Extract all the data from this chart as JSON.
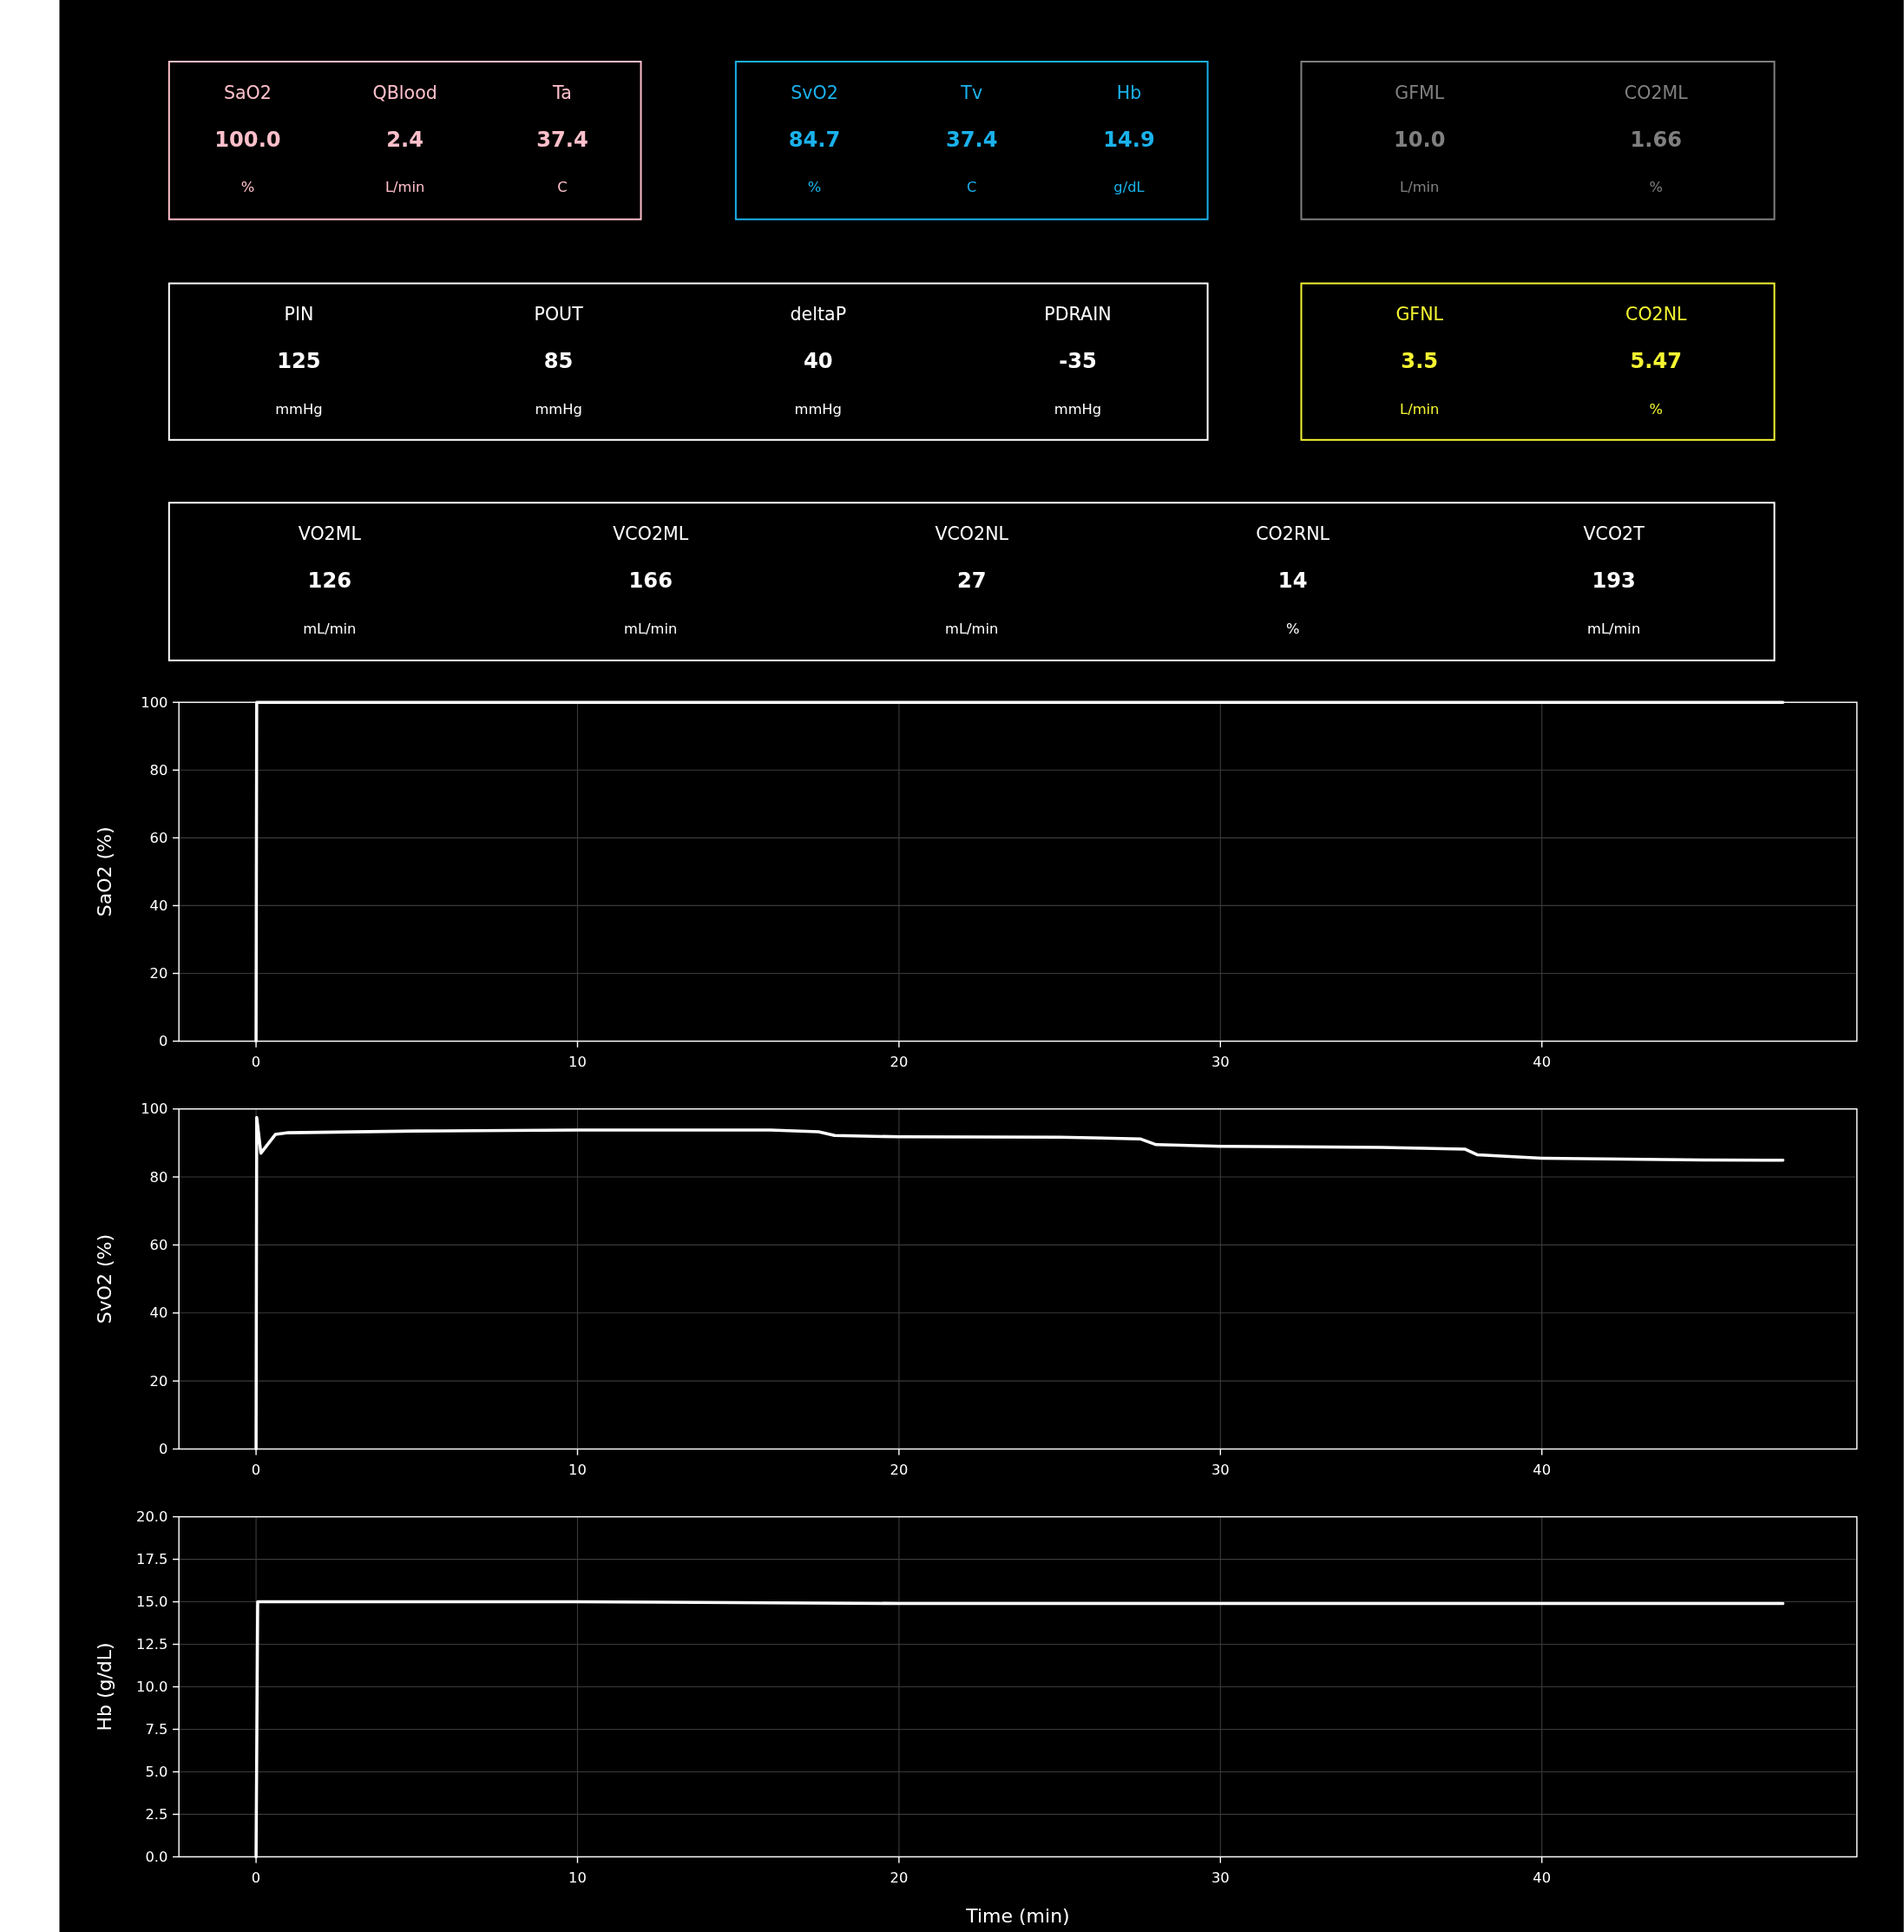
{
  "chart_data": [
    {
      "type": "other",
      "categories": [
        "SaO2",
        "QBlood",
        "Ta"
      ],
      "value_labels": [
        "100.0",
        "2.4",
        "37.4"
      ],
      "annotations": [
        "%",
        "L/min",
        "C"
      ],
      "color": "#ffc0cb"
    },
    {
      "type": "other",
      "categories": [
        "SvO2",
        "Tv",
        "Hb"
      ],
      "value_labels": [
        "84.7",
        "37.4",
        "14.9"
      ],
      "annotations": [
        "%",
        "C",
        "g/dL"
      ],
      "color": "#1ab2ec"
    },
    {
      "type": "other",
      "categories": [
        "GFML",
        "CO2ML"
      ],
      "value_labels": [
        "10.0",
        "1.66"
      ],
      "annotations": [
        "L/min",
        "%"
      ],
      "color": "#808080"
    },
    {
      "type": "other",
      "categories": [
        "PIN",
        "POUT",
        "deltaP",
        "PDRAIN"
      ],
      "value_labels": [
        "125",
        "85",
        "40",
        "-35"
      ],
      "annotations": [
        "mmHg",
        "mmHg",
        "mmHg",
        "mmHg"
      ],
      "color": "#ffffff"
    },
    {
      "type": "other",
      "categories": [
        "GFNL",
        "CO2NL"
      ],
      "value_labels": [
        "3.5",
        "5.47"
      ],
      "annotations": [
        "L/min",
        "%"
      ],
      "color": "#f5f532"
    },
    {
      "type": "other",
      "categories": [
        "VO2ML",
        "VCO2ML",
        "VCO2NL",
        "CO2RNL",
        "VCO2T"
      ],
      "value_labels": [
        "126",
        "166",
        "27",
        "14",
        "193"
      ],
      "annotations": [
        "mL/min",
        "mL/min",
        "mL/min",
        "%",
        "mL/min"
      ],
      "color": "#ffffff"
    },
    {
      "type": "line",
      "ylabel": "SaO2 (%)",
      "x": [
        0,
        0.02,
        10,
        20,
        30,
        40,
        47.5
      ],
      "series": [
        {
          "color": "#ffffff",
          "values": [
            0,
            100,
            100,
            100,
            100,
            100,
            100
          ]
        }
      ],
      "xlim": [
        -2.4,
        49.8
      ],
      "ylim": [
        0,
        100
      ],
      "xticks": [
        0,
        10,
        20,
        30,
        40
      ],
      "yticks": [
        0,
        20,
        40,
        60,
        80,
        100
      ],
      "grid": true
    },
    {
      "type": "line",
      "ylabel": "SvO2 (%)",
      "x": [
        0,
        0.02,
        0.15,
        0.6,
        1,
        5,
        10,
        16,
        17.5,
        18,
        20,
        25,
        27.5,
        28,
        30,
        35,
        37.6,
        38,
        40,
        45,
        47.5
      ],
      "series": [
        {
          "color": "#ffffff",
          "values": [
            0,
            97.5,
            87,
            92.5,
            93,
            93.5,
            93.8,
            93.8,
            93.3,
            92.2,
            91.8,
            91.7,
            91.2,
            89.5,
            89,
            88.7,
            88.2,
            86.5,
            85.5,
            85,
            84.9
          ]
        }
      ],
      "xlim": [
        -2.4,
        49.8
      ],
      "ylim": [
        0,
        100
      ],
      "xticks": [
        0,
        10,
        20,
        30,
        40
      ],
      "yticks": [
        0,
        20,
        40,
        60,
        80,
        100
      ],
      "grid": true
    },
    {
      "type": "line",
      "ylabel": "Hb (g/dL)",
      "xlabel": "Time (min)",
      "x": [
        0,
        0.05,
        10,
        20,
        30,
        40,
        47.5
      ],
      "series": [
        {
          "color": "#ffffff",
          "values": [
            0,
            15,
            15,
            14.9,
            14.9,
            14.9,
            14.9
          ]
        }
      ],
      "xlim": [
        -2.4,
        49.8
      ],
      "ylim": [
        0,
        20
      ],
      "xticks": [
        0,
        10,
        20,
        30,
        40
      ],
      "yticks": [
        {
          "value": 0,
          "label": "0.0"
        },
        {
          "value": 2.5,
          "label": "2.5"
        },
        {
          "value": 5,
          "label": "5.0"
        },
        {
          "value": 7.5,
          "label": "7.5"
        },
        {
          "value": 10,
          "label": "10.0"
        },
        {
          "value": 12.5,
          "label": "12.5"
        },
        {
          "value": 15,
          "label": "15.0"
        },
        {
          "value": 17.5,
          "label": "17.5"
        },
        {
          "value": 20,
          "label": "20.0"
        }
      ],
      "grid": true
    }
  ]
}
